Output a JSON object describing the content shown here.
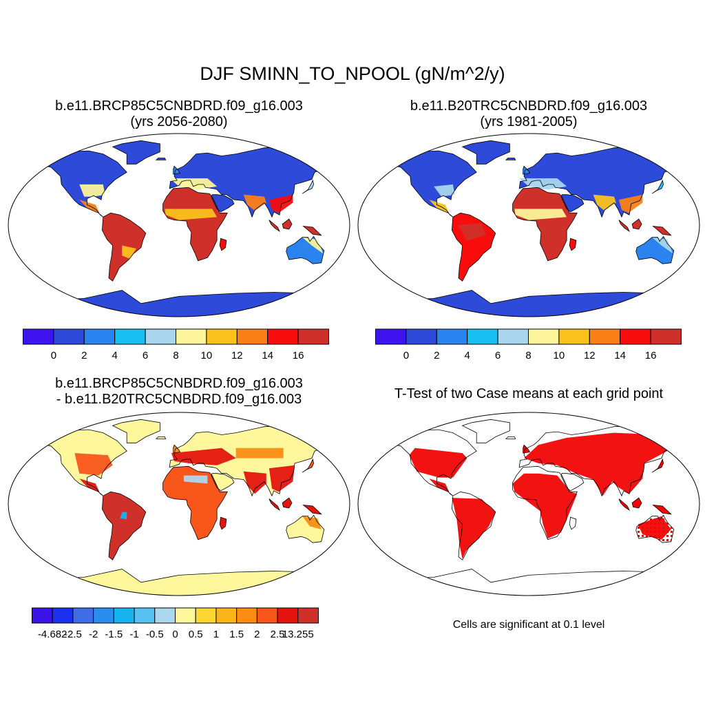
{
  "page": {
    "title": "DJF SMINN_TO_NPOOL (gN/m^2/y)",
    "note": "Cells are significant at 0.1 level"
  },
  "panels": [
    {
      "title_line1": "b.e11.BRCP85C5CNBDRD.f09_g16.003",
      "title_line2": "(yrs 2056-2080)"
    },
    {
      "title_line1": "b.e11.B20TRC5CNBDRD.f09_g16.003",
      "title_line2": "(yrs 1981-2005)"
    },
    {
      "title_line1": "b.e11.BRCP85C5CNBDRD.f09_g16.003",
      "title_line2": "- b.e11.B20TRC5CNBDRD.f09_g16.003"
    },
    {
      "title_line1": "T-Test of two Case means at each grid point"
    }
  ],
  "colorbars": {
    "absolute": {
      "colors": [
        "#3d14f0",
        "#2e4ad8",
        "#2a83ef",
        "#18bff2",
        "#a9d5ef",
        "#fcf49a",
        "#fbc21d",
        "#fb8116",
        "#f90c0c",
        "#d0302a"
      ],
      "labels": [
        "0",
        "2",
        "4",
        "6",
        "8",
        "10",
        "12",
        "14",
        "16"
      ]
    },
    "difference": {
      "colors": [
        "#3a14e6",
        "#1c32f0",
        "#3f6de6",
        "#2a8eef",
        "#18b4f0",
        "#58c3f2",
        "#aad8ef",
        "#fef79c",
        "#fed633",
        "#fcb41b",
        "#fc8c12",
        "#f9561b",
        "#e4140e",
        "#d0302a"
      ],
      "labels": [
        "-4.682",
        "-2.5",
        "-2",
        "-1.5",
        "-1",
        "-0.5",
        "0",
        "0.5",
        "1",
        "1.5",
        "2",
        "2.5",
        "13.255"
      ]
    }
  },
  "colors": {
    "ocean_fill": "#ffffff",
    "land_cold": "#2e4ad8",
    "significant": "#f20505",
    "neutral_difference": "#fdf4a6"
  }
}
